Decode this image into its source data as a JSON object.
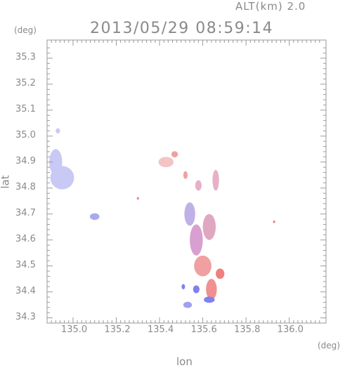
{
  "header": {
    "altitude_label": "ALT(km) 2.0",
    "timestamp": "2013/05/29 08:59:14"
  },
  "axes": {
    "y_unit": "(deg)",
    "x_unit": "(deg)",
    "y_title": "lat",
    "x_title": "lon"
  },
  "chart_data": {
    "type": "heatmap",
    "xlabel": "lon",
    "ylabel": "lat",
    "xlim": [
      134.88,
      136.17
    ],
    "ylim": [
      34.28,
      35.37
    ],
    "x_ticks": [
      "135.0",
      "135.2",
      "135.4",
      "135.6",
      "135.8",
      "136.0"
    ],
    "y_ticks": [
      "34.3",
      "34.4",
      "34.5",
      "34.6",
      "34.7",
      "34.8",
      "34.9",
      "35.0",
      "35.1",
      "35.2",
      "35.3"
    ],
    "colors": {
      "approaching": "#7f7ff0",
      "receding": "#f07f7f",
      "far_field": "#c8c8f5"
    },
    "echo_regions": [
      {
        "lon": 134.95,
        "lat": 34.84,
        "rx": 0.055,
        "ry": 0.045,
        "color": "#c9c9f6"
      },
      {
        "lon": 134.92,
        "lat": 34.9,
        "rx": 0.03,
        "ry": 0.05,
        "color": "#c9c9f6"
      },
      {
        "lon": 134.93,
        "lat": 35.02,
        "rx": 0.01,
        "ry": 0.01,
        "color": "#c9c9f6"
      },
      {
        "lon": 135.1,
        "lat": 34.69,
        "rx": 0.022,
        "ry": 0.013,
        "color": "#a9a9ee"
      },
      {
        "lon": 135.43,
        "lat": 34.9,
        "rx": 0.035,
        "ry": 0.02,
        "color": "#f4c4c4"
      },
      {
        "lon": 135.47,
        "lat": 34.93,
        "rx": 0.015,
        "ry": 0.012,
        "color": "#f0a0a0"
      },
      {
        "lon": 135.52,
        "lat": 34.85,
        "rx": 0.01,
        "ry": 0.015,
        "color": "#f0a0a0"
      },
      {
        "lon": 135.58,
        "lat": 34.81,
        "rx": 0.015,
        "ry": 0.02,
        "color": "#e8b0c8"
      },
      {
        "lon": 135.66,
        "lat": 34.83,
        "rx": 0.015,
        "ry": 0.04,
        "color": "#e8b0c8"
      },
      {
        "lon": 135.54,
        "lat": 34.7,
        "rx": 0.025,
        "ry": 0.045,
        "color": "#c0b0e8"
      },
      {
        "lon": 135.63,
        "lat": 34.65,
        "rx": 0.03,
        "ry": 0.05,
        "color": "#e0a8c0"
      },
      {
        "lon": 135.57,
        "lat": 34.6,
        "rx": 0.03,
        "ry": 0.06,
        "color": "#d8a0d0"
      },
      {
        "lon": 135.6,
        "lat": 34.5,
        "rx": 0.04,
        "ry": 0.04,
        "color": "#f0a0a0"
      },
      {
        "lon": 135.68,
        "lat": 34.47,
        "rx": 0.02,
        "ry": 0.02,
        "color": "#f07f7f"
      },
      {
        "lon": 135.64,
        "lat": 34.41,
        "rx": 0.025,
        "ry": 0.04,
        "color": "#f09090"
      },
      {
        "lon": 135.57,
        "lat": 34.41,
        "rx": 0.015,
        "ry": 0.015,
        "color": "#8080f0"
      },
      {
        "lon": 135.63,
        "lat": 34.37,
        "rx": 0.025,
        "ry": 0.012,
        "color": "#8080f0"
      },
      {
        "lon": 135.53,
        "lat": 34.35,
        "rx": 0.02,
        "ry": 0.012,
        "color": "#a0a0f0"
      },
      {
        "lon": 135.51,
        "lat": 34.42,
        "rx": 0.008,
        "ry": 0.01,
        "color": "#8080f0"
      },
      {
        "lon": 135.93,
        "lat": 34.67,
        "rx": 0.005,
        "ry": 0.005,
        "color": "#f07f7f"
      },
      {
        "lon": 135.3,
        "lat": 34.76,
        "rx": 0.003,
        "ry": 0.005,
        "color": "#f07f7f"
      }
    ]
  }
}
